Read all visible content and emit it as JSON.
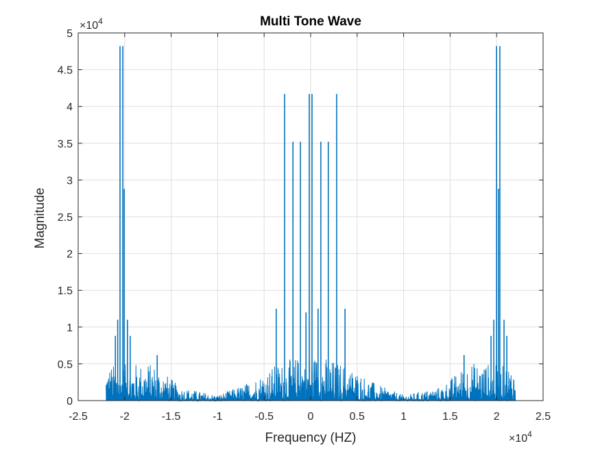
{
  "chart_data": {
    "type": "line",
    "title": "Multi Tone Wave",
    "xlabel": "Frequency (HZ)",
    "ylabel": "Magnitude",
    "x_multiplier": "×10",
    "x_multiplier_exp": "4",
    "y_multiplier": "×10",
    "y_multiplier_exp": "4",
    "xlim": [
      -25000,
      25000
    ],
    "ylim": [
      0,
      50000
    ],
    "xticks": [
      -25000,
      -20000,
      -15000,
      -10000,
      -5000,
      0,
      5000,
      10000,
      15000,
      20000,
      25000
    ],
    "xtick_labels": [
      "-2.5",
      "-2",
      "-1.5",
      "-1",
      "-0.5",
      "0",
      "0.5",
      "1",
      "1.5",
      "2",
      "2.5"
    ],
    "yticks": [
      0,
      5000,
      10000,
      15000,
      20000,
      25000,
      30000,
      35000,
      40000,
      45000,
      50000
    ],
    "ytick_labels": [
      "0",
      "0.5",
      "1",
      "1.5",
      "2",
      "2.5",
      "3",
      "3.5",
      "4",
      "4.5",
      "5"
    ],
    "grid": true,
    "line_color": "#0072bd",
    "peaks": [
      {
        "x": -20500,
        "y": 48200
      },
      {
        "x": -20200,
        "y": 48200
      },
      {
        "x": -20050,
        "y": 28800
      },
      {
        "x": -20750,
        "y": 11000
      },
      {
        "x": -19700,
        "y": 11000
      },
      {
        "x": -21000,
        "y": 8800
      },
      {
        "x": -19400,
        "y": 8800
      },
      {
        "x": -2800,
        "y": 41700
      },
      {
        "x": -150,
        "y": 41700
      },
      {
        "x": 150,
        "y": 41700
      },
      {
        "x": 2800,
        "y": 41700
      },
      {
        "x": -1900,
        "y": 35200
      },
      {
        "x": -1100,
        "y": 35200
      },
      {
        "x": 1100,
        "y": 35200
      },
      {
        "x": 1900,
        "y": 35200
      },
      {
        "x": -3700,
        "y": 12500
      },
      {
        "x": 800,
        "y": 12500
      },
      {
        "x": 3700,
        "y": 12500
      },
      {
        "x": -500,
        "y": 12000
      },
      {
        "x": 20000,
        "y": 48200
      },
      {
        "x": 20350,
        "y": 48200
      },
      {
        "x": 20200,
        "y": 28800
      },
      {
        "x": 19700,
        "y": 11000
      },
      {
        "x": 20800,
        "y": 11000
      },
      {
        "x": 19400,
        "y": 8800
      },
      {
        "x": 21100,
        "y": 8800
      },
      {
        "x": -16500,
        "y": 6200
      },
      {
        "x": 16500,
        "y": 6200
      }
    ],
    "noise_envelope": [
      {
        "x": -22000,
        "y": 5200
      },
      {
        "x": -17000,
        "y": 5600
      },
      {
        "x": -14000,
        "y": 2000
      },
      {
        "x": -10000,
        "y": 800
      },
      {
        "x": -7000,
        "y": 2500
      },
      {
        "x": -4000,
        "y": 5200
      },
      {
        "x": 0,
        "y": 7000
      },
      {
        "x": 4000,
        "y": 5200
      },
      {
        "x": 7000,
        "y": 2500
      },
      {
        "x": 10000,
        "y": 800
      },
      {
        "x": 14000,
        "y": 2000
      },
      {
        "x": 17000,
        "y": 5600
      },
      {
        "x": 22000,
        "y": 5200
      }
    ],
    "data_range": [
      -22000,
      22000
    ]
  }
}
